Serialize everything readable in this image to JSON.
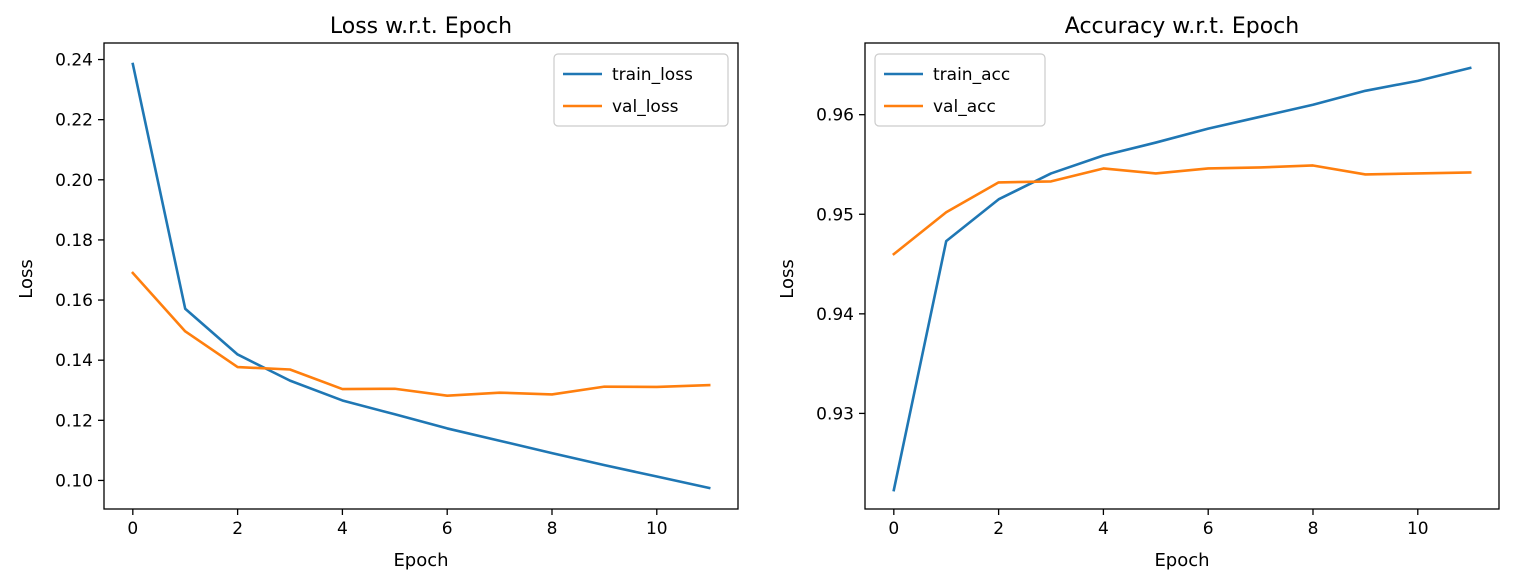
{
  "chart_data": [
    {
      "type": "line",
      "title": "Loss w.r.t. Epoch",
      "xlabel": "Epoch",
      "ylabel": "Loss",
      "x": [
        0,
        1,
        2,
        3,
        4,
        5,
        6,
        7,
        8,
        9,
        10,
        11
      ],
      "xlim": [
        -0.55,
        11.55
      ],
      "ylim": [
        0.0905,
        0.2455
      ],
      "xticks": [
        0,
        2,
        4,
        6,
        8,
        10
      ],
      "yticks": [
        0.1,
        0.12,
        0.14,
        0.16,
        0.18,
        0.2,
        0.22,
        0.24
      ],
      "ytick_labels": [
        "0.10",
        "0.12",
        "0.14",
        "0.16",
        "0.18",
        "0.20",
        "0.22",
        "0.24"
      ],
      "legend_position": "upper right",
      "grid": false,
      "series": [
        {
          "name": "train_loss",
          "color": "#1f77b4",
          "values": [
            0.2385,
            0.1571,
            0.1419,
            0.1332,
            0.1266,
            0.122,
            0.1173,
            0.1132,
            0.1091,
            0.1051,
            0.1013,
            0.0975
          ]
        },
        {
          "name": "val_loss",
          "color": "#ff7f0e",
          "values": [
            0.169,
            0.1496,
            0.1377,
            0.1369,
            0.1304,
            0.1305,
            0.1282,
            0.1292,
            0.1286,
            0.1312,
            0.1311,
            0.1317
          ]
        }
      ]
    },
    {
      "type": "line",
      "title": "Accuracy w.r.t. Epoch",
      "xlabel": "Epoch",
      "ylabel": "Loss",
      "x": [
        0,
        1,
        2,
        3,
        4,
        5,
        6,
        7,
        8,
        9,
        10,
        11
      ],
      "xlim": [
        -0.55,
        11.55
      ],
      "ylim": [
        0.9204,
        0.9672
      ],
      "xticks": [
        0,
        2,
        4,
        6,
        8,
        10
      ],
      "yticks": [
        0.93,
        0.94,
        0.95,
        0.96
      ],
      "ytick_labels": [
        "0.93",
        "0.94",
        "0.95",
        "0.96"
      ],
      "legend_position": "upper left",
      "grid": false,
      "series": [
        {
          "name": "train_acc",
          "color": "#1f77b4",
          "values": [
            0.9223,
            0.9473,
            0.9515,
            0.9541,
            0.9559,
            0.9572,
            0.9586,
            0.9598,
            0.961,
            0.9624,
            0.9634,
            0.9647
          ]
        },
        {
          "name": "val_acc",
          "color": "#ff7f0e",
          "values": [
            0.946,
            0.9502,
            0.9532,
            0.9533,
            0.9546,
            0.9541,
            0.9546,
            0.9547,
            0.9549,
            0.954,
            0.9541,
            0.9542
          ]
        }
      ]
    }
  ]
}
